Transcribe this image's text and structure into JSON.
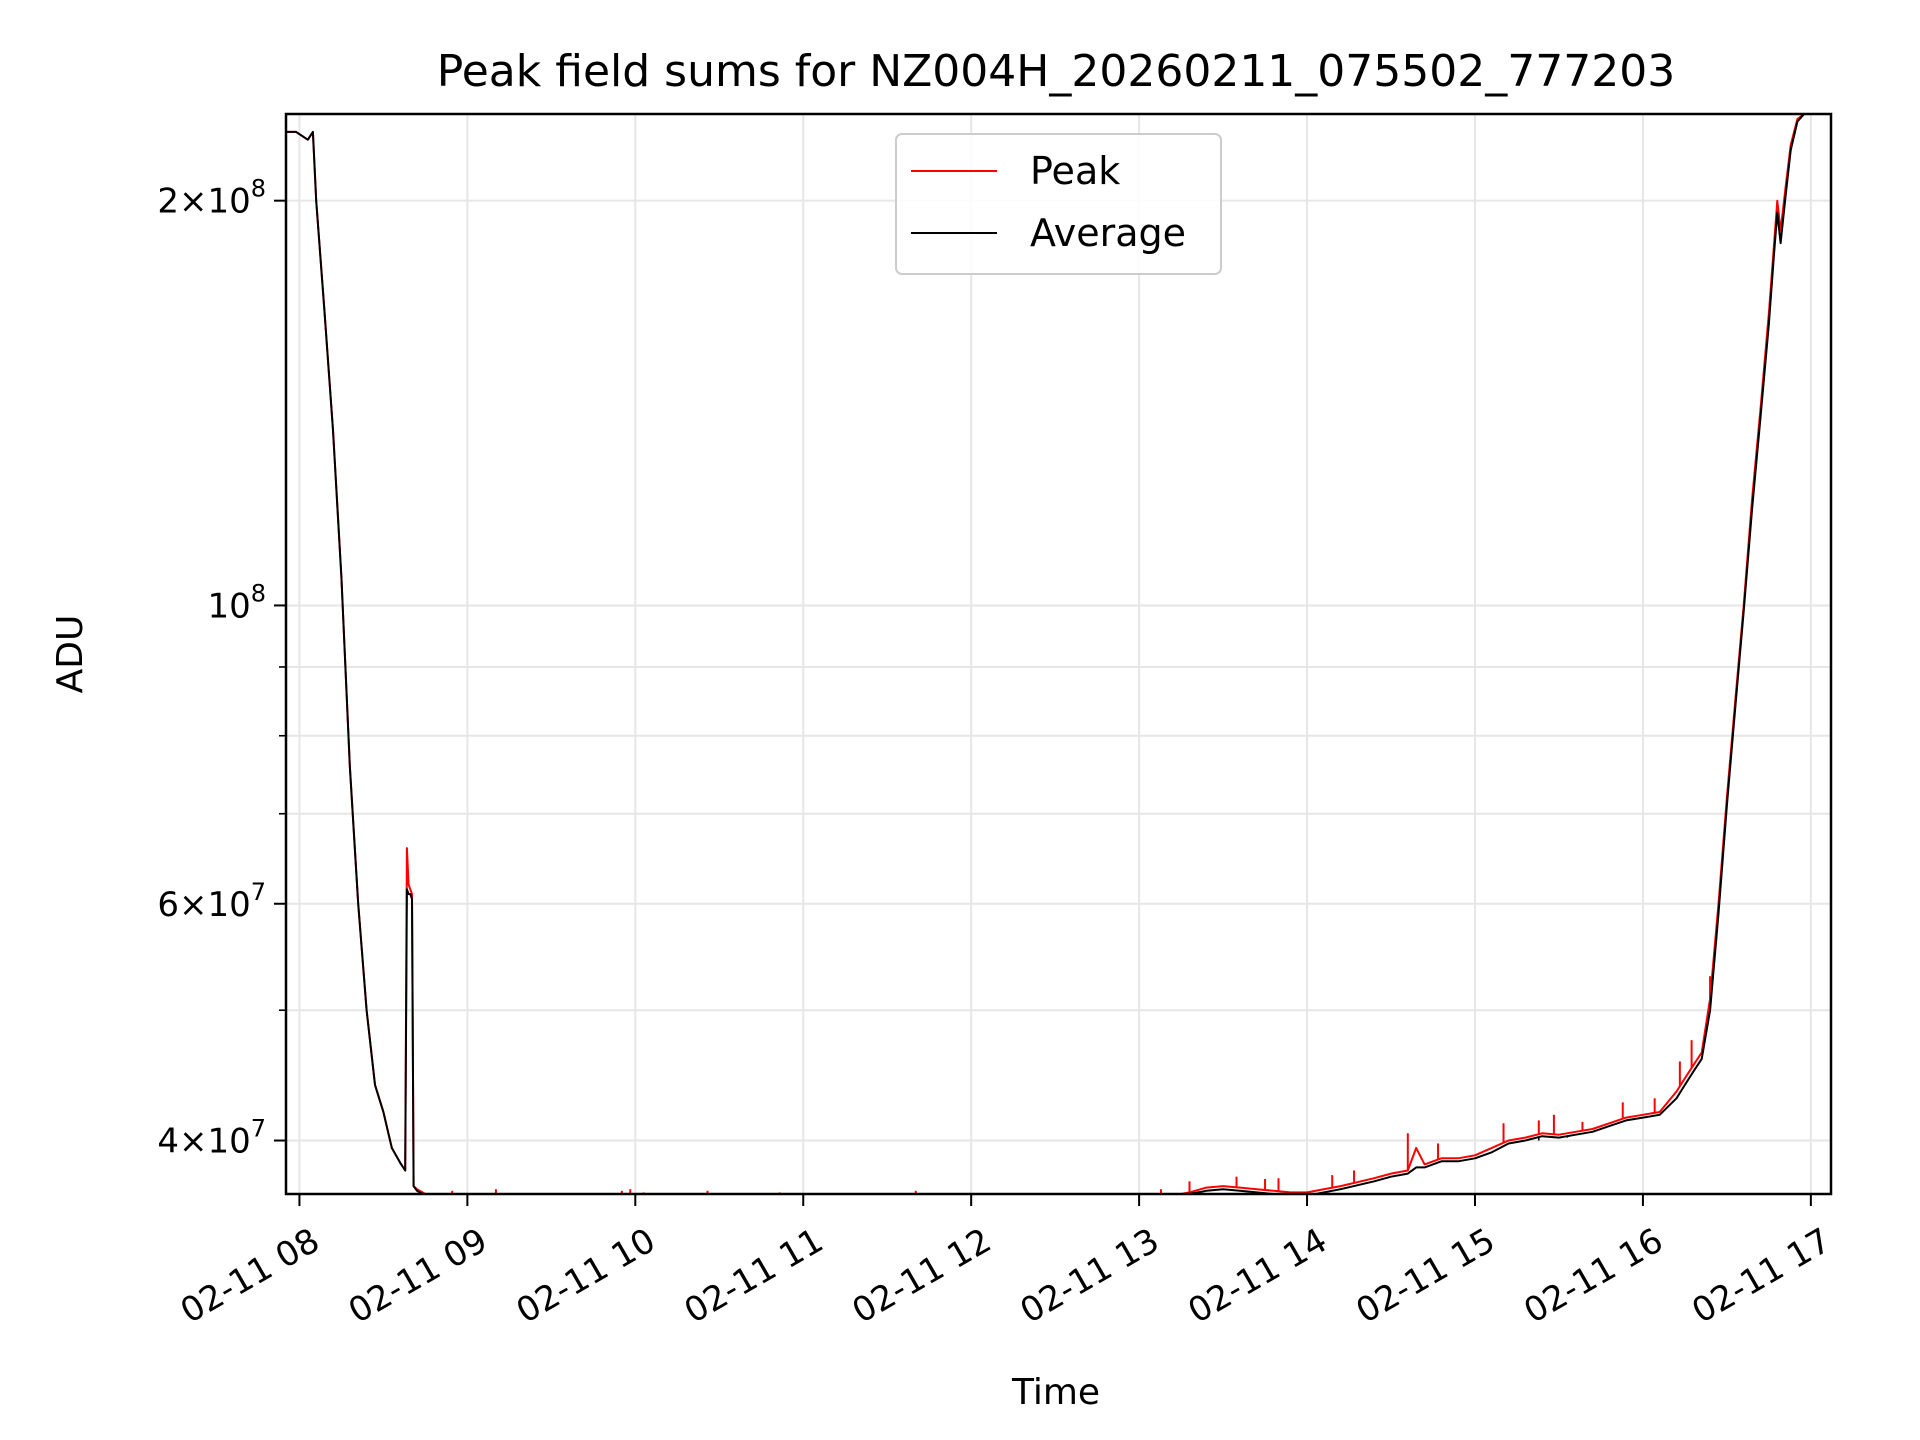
{
  "chart_data": {
    "type": "line",
    "title": "Peak field sums for NZ004H_20260211_075502_777203",
    "xlabel": "Time",
    "ylabel": "ADU",
    "yscale": "log",
    "ylim": [
      36500000,
      232000000
    ],
    "xlim_hours": [
      7.92,
      17.12
    ],
    "grid": true,
    "legend_position": "top-center",
    "colors": {
      "peak": "#ff0000",
      "average": "#000000",
      "grid": "#e6e6e6",
      "axes": "#000000"
    },
    "x_ticks": [
      {
        "hour": 8,
        "label": "02-11 08"
      },
      {
        "hour": 9,
        "label": "02-11 09"
      },
      {
        "hour": 10,
        "label": "02-11 10"
      },
      {
        "hour": 11,
        "label": "02-11 11"
      },
      {
        "hour": 12,
        "label": "02-11 12"
      },
      {
        "hour": 13,
        "label": "02-11 13"
      },
      {
        "hour": 14,
        "label": "02-11 14"
      },
      {
        "hour": 15,
        "label": "02-11 15"
      },
      {
        "hour": 16,
        "label": "02-11 16"
      },
      {
        "hour": 17,
        "label": "02-11 17"
      }
    ],
    "y_major_ticks": [
      {
        "value": 40000000,
        "mantissa": "4",
        "base": "10",
        "exp": "7"
      },
      {
        "value": 60000000,
        "mantissa": "6",
        "base": "10",
        "exp": "7"
      },
      {
        "value": 100000000,
        "mantissa": "",
        "base": "10",
        "exp": "8"
      },
      {
        "value": 200000000,
        "mantissa": "2",
        "base": "10",
        "exp": "8"
      }
    ],
    "y_minor_grid": [
      50000000,
      70000000,
      80000000,
      90000000
    ],
    "series": [
      {
        "name": "Peak",
        "x_hours": [
          7.92,
          7.98,
          8.05,
          8.08,
          8.1,
          8.15,
          8.2,
          8.25,
          8.3,
          8.35,
          8.4,
          8.45,
          8.5,
          8.55,
          8.6,
          8.63,
          8.64,
          8.65,
          8.66,
          8.67,
          8.68,
          8.7,
          8.75,
          8.8,
          8.9,
          9.0,
          9.2,
          9.3,
          9.5,
          9.7,
          9.8,
          9.9,
          10.0,
          10.2,
          10.3,
          10.5,
          10.7,
          10.8,
          11.0,
          11.2,
          11.4,
          11.6,
          11.7,
          11.8,
          12.0,
          12.1,
          12.3,
          12.5,
          12.7,
          12.8,
          13.0,
          13.2,
          13.3,
          13.4,
          13.5,
          13.6,
          13.7,
          13.8,
          13.9,
          14.0,
          14.2,
          14.4,
          14.5,
          14.6,
          14.65,
          14.7,
          14.8,
          14.9,
          15.0,
          15.1,
          15.2,
          15.3,
          15.4,
          15.5,
          15.6,
          15.7,
          15.8,
          15.9,
          16.0,
          16.1,
          16.2,
          16.25,
          16.3,
          16.35,
          16.4,
          16.45,
          16.5,
          16.55,
          16.6,
          16.65,
          16.7,
          16.75,
          16.78,
          16.8,
          16.82,
          16.85,
          16.88,
          16.92,
          16.96,
          17.0
        ],
        "values": [
          225000000,
          225000000,
          222000000,
          225000000,
          200000000,
          165000000,
          135000000,
          105000000,
          76000000,
          60000000,
          50000000,
          44000000,
          42000000,
          39500000,
          38500000,
          38000000,
          66000000,
          62000000,
          61500000,
          61000000,
          37000000,
          36800000,
          36500000,
          36300000,
          36200000,
          36100000,
          36000000,
          36050000,
          36000000,
          36100000,
          36100000,
          36200000,
          36100000,
          36200000,
          36050000,
          36050000,
          35950000,
          36000000,
          36000000,
          36050000,
          35950000,
          35950000,
          36000000,
          35950000,
          35900000,
          35950000,
          35950000,
          36000000,
          36050000,
          36100000,
          36200000,
          36400000,
          36600000,
          36900000,
          37000000,
          36900000,
          36800000,
          36700000,
          36600000,
          36600000,
          37000000,
          37500000,
          37800000,
          38000000,
          39500000,
          38400000,
          38800000,
          38800000,
          39000000,
          39500000,
          40000000,
          40200000,
          40500000,
          40400000,
          40600000,
          40800000,
          41200000,
          41600000,
          41800000,
          42000000,
          43500000,
          44500000,
          45500000,
          46500000,
          51000000,
          60000000,
          72000000,
          85000000,
          100000000,
          120000000,
          140000000,
          165000000,
          185000000,
          200000000,
          190000000,
          205000000,
          220000000,
          230000000,
          232000000,
          232000000
        ]
      },
      {
        "name": "Average",
        "x_hours": [
          7.92,
          7.98,
          8.05,
          8.08,
          8.1,
          8.15,
          8.2,
          8.25,
          8.3,
          8.35,
          8.4,
          8.45,
          8.5,
          8.55,
          8.6,
          8.63,
          8.64,
          8.65,
          8.66,
          8.67,
          8.68,
          8.7,
          8.75,
          8.8,
          8.9,
          9.0,
          9.2,
          9.3,
          9.5,
          9.7,
          9.8,
          9.9,
          10.0,
          10.2,
          10.3,
          10.5,
          10.7,
          10.8,
          11.0,
          11.2,
          11.4,
          11.6,
          11.7,
          11.8,
          12.0,
          12.1,
          12.3,
          12.5,
          12.7,
          12.8,
          13.0,
          13.2,
          13.3,
          13.4,
          13.5,
          13.6,
          13.7,
          13.8,
          13.9,
          14.0,
          14.2,
          14.4,
          14.5,
          14.6,
          14.65,
          14.7,
          14.8,
          14.9,
          15.0,
          15.1,
          15.2,
          15.3,
          15.4,
          15.5,
          15.6,
          15.7,
          15.8,
          15.9,
          16.0,
          16.1,
          16.2,
          16.25,
          16.3,
          16.35,
          16.4,
          16.45,
          16.5,
          16.55,
          16.6,
          16.65,
          16.7,
          16.75,
          16.78,
          16.8,
          16.82,
          16.85,
          16.88,
          16.92,
          16.96,
          17.0
        ],
        "values": [
          225000000,
          225000000,
          222000000,
          225000000,
          200000000,
          165000000,
          135000000,
          105000000,
          76000000,
          60000000,
          50000000,
          44000000,
          42000000,
          39500000,
          38500000,
          38000000,
          61500000,
          61000000,
          61000000,
          60500000,
          37000000,
          36700000,
          36400000,
          36200000,
          36100000,
          36000000,
          35900000,
          36000000,
          35950000,
          36000000,
          36050000,
          36100000,
          36050000,
          36100000,
          36000000,
          36000000,
          35900000,
          35950000,
          35950000,
          36000000,
          35900000,
          35900000,
          35950000,
          35900000,
          35850000,
          35900000,
          35900000,
          35950000,
          36000000,
          36050000,
          36150000,
          36300000,
          36500000,
          36700000,
          36800000,
          36700000,
          36600000,
          36500000,
          36400000,
          36400000,
          36800000,
          37300000,
          37600000,
          37800000,
          38200000,
          38200000,
          38600000,
          38600000,
          38800000,
          39200000,
          39800000,
          40000000,
          40300000,
          40200000,
          40400000,
          40600000,
          41000000,
          41400000,
          41600000,
          41800000,
          43000000,
          44000000,
          45000000,
          46000000,
          50000000,
          59000000,
          71000000,
          84000000,
          99000000,
          118000000,
          138000000,
          162000000,
          182000000,
          196000000,
          186000000,
          202000000,
          218000000,
          229000000,
          232000000,
          232000000
        ]
      }
    ],
    "peak_spikes": [
      {
        "hour": 8.91,
        "value": 36700000
      },
      {
        "hour": 9.17,
        "value": 36800000
      },
      {
        "hour": 9.42,
        "value": 36350000
      },
      {
        "hour": 9.7,
        "value": 36500000
      },
      {
        "hour": 9.8,
        "value": 36500000
      },
      {
        "hour": 9.92,
        "value": 36700000
      },
      {
        "hour": 9.97,
        "value": 36800000
      },
      {
        "hour": 10.05,
        "value": 36600000
      },
      {
        "hour": 10.43,
        "value": 36700000
      },
      {
        "hour": 10.86,
        "value": 36600000
      },
      {
        "hour": 11.67,
        "value": 36700000
      },
      {
        "hour": 12.38,
        "value": 36250000
      },
      {
        "hour": 12.73,
        "value": 36300000
      },
      {
        "hour": 13.13,
        "value": 36800000
      },
      {
        "hour": 13.3,
        "value": 37300000
      },
      {
        "hour": 13.58,
        "value": 37600000
      },
      {
        "hour": 13.75,
        "value": 37450000
      },
      {
        "hour": 13.83,
        "value": 37500000
      },
      {
        "hour": 14.15,
        "value": 37700000
      },
      {
        "hour": 14.28,
        "value": 38000000
      },
      {
        "hour": 14.6,
        "value": 40500000
      },
      {
        "hour": 14.78,
        "value": 39800000
      },
      {
        "hour": 15.17,
        "value": 41200000
      },
      {
        "hour": 15.38,
        "value": 41400000
      },
      {
        "hour": 15.47,
        "value": 41800000
      },
      {
        "hour": 15.64,
        "value": 41300000
      },
      {
        "hour": 15.88,
        "value": 42700000
      },
      {
        "hour": 16.07,
        "value": 43000000
      },
      {
        "hour": 16.22,
        "value": 45800000
      },
      {
        "hour": 16.29,
        "value": 47500000
      },
      {
        "hour": 16.4,
        "value": 53000000
      }
    ],
    "average_dips": [
      {
        "hour": 8.78,
        "value": 35700000
      },
      {
        "hour": 9.12,
        "value": 35600000
      },
      {
        "hour": 9.28,
        "value": 35500000
      },
      {
        "hour": 9.65,
        "value": 35700000
      },
      {
        "hour": 10.22,
        "value": 35600000
      },
      {
        "hour": 10.68,
        "value": 35550000
      },
      {
        "hour": 11.08,
        "value": 35500000
      },
      {
        "hour": 11.42,
        "value": 35550000
      },
      {
        "hour": 11.95,
        "value": 35500000
      },
      {
        "hour": 12.25,
        "value": 35450000
      },
      {
        "hour": 12.6,
        "value": 35600000
      },
      {
        "hour": 15.38,
        "value": 40000000
      },
      {
        "hour": 15.55,
        "value": 40200000
      },
      {
        "hour": 15.72,
        "value": 40700000
      }
    ]
  }
}
